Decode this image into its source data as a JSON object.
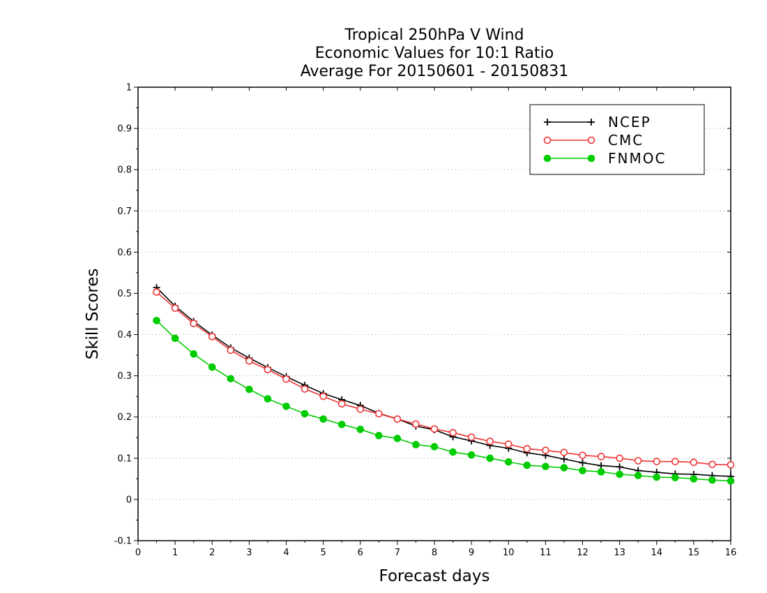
{
  "chart_data": {
    "type": "line",
    "title_lines": [
      "Tropical 250hPa V Wind",
      "Economic Values for 10:1 Ratio",
      "Average For 20150601 - 20150831"
    ],
    "xlabel": "Forecast days",
    "ylabel": "Skill Scores",
    "xlim": [
      0,
      16
    ],
    "ylim": [
      -0.1,
      1
    ],
    "x_ticks": [
      0,
      1,
      2,
      3,
      4,
      5,
      6,
      7,
      8,
      9,
      10,
      11,
      12,
      13,
      14,
      15,
      16
    ],
    "x_tick_labels": [
      "0",
      "1",
      "2",
      "3",
      "4",
      "5",
      "6",
      "7",
      "8",
      "9",
      "10",
      "11",
      "12",
      "13",
      "14",
      "15",
      "16"
    ],
    "y_ticks": [
      -0.1,
      0,
      0.1,
      0.2,
      0.3,
      0.4,
      0.5,
      0.6,
      0.7,
      0.8,
      0.9,
      1
    ],
    "y_tick_labels": [
      "-0.1",
      "0",
      "0.1",
      "0.2",
      "0.3",
      "0.4",
      "0.5",
      "0.6",
      "0.7",
      "0.8",
      "0.9",
      "1"
    ],
    "grid": "horizontal dotted",
    "legend_position": "top-right",
    "x": [
      0.5,
      1,
      1.5,
      2,
      2.5,
      3,
      3.5,
      4,
      4.5,
      5,
      5.5,
      6,
      6.5,
      7,
      7.5,
      8,
      8.5,
      9,
      9.5,
      10,
      10.5,
      11,
      11.5,
      12,
      12.5,
      13,
      13.5,
      14,
      14.5,
      15,
      15.5,
      16
    ],
    "series": [
      {
        "name": "NCEP",
        "color": "#000000",
        "marker": "plus",
        "values": [
          0.514,
          0.469,
          0.432,
          0.399,
          0.368,
          0.343,
          0.32,
          0.298,
          0.277,
          0.257,
          0.242,
          0.228,
          0.209,
          0.195,
          0.178,
          0.169,
          0.152,
          0.142,
          0.131,
          0.124,
          0.113,
          0.107,
          0.098,
          0.089,
          0.082,
          0.079,
          0.07,
          0.066,
          0.062,
          0.061,
          0.058,
          0.056
        ]
      },
      {
        "name": "CMC",
        "color": "#ee3333",
        "marker": "open-circle",
        "values": [
          0.503,
          0.464,
          0.427,
          0.395,
          0.362,
          0.336,
          0.315,
          0.292,
          0.268,
          0.25,
          0.232,
          0.219,
          0.208,
          0.195,
          0.183,
          0.171,
          0.162,
          0.151,
          0.141,
          0.134,
          0.123,
          0.119,
          0.114,
          0.107,
          0.104,
          0.1,
          0.094,
          0.092,
          0.092,
          0.09,
          0.085,
          0.084
        ]
      },
      {
        "name": "FNMOC",
        "color": "#00cc00",
        "marker": "filled-circle",
        "values": [
          0.434,
          0.391,
          0.353,
          0.321,
          0.293,
          0.267,
          0.244,
          0.226,
          0.208,
          0.195,
          0.182,
          0.17,
          0.155,
          0.148,
          0.133,
          0.128,
          0.115,
          0.108,
          0.1,
          0.091,
          0.083,
          0.08,
          0.077,
          0.07,
          0.067,
          0.061,
          0.058,
          0.054,
          0.053,
          0.05,
          0.047,
          0.045
        ]
      }
    ]
  }
}
